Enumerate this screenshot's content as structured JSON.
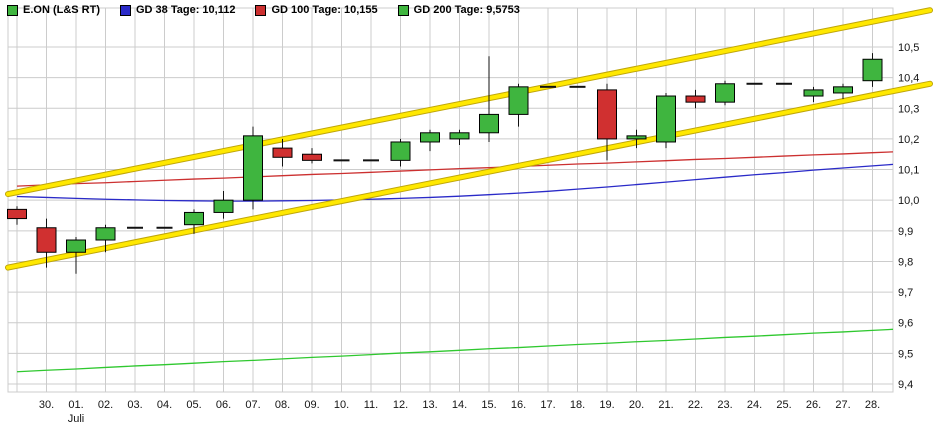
{
  "legend": {
    "items": [
      {
        "label": "E.ON (L&S RT)",
        "color": "#3fb53f"
      },
      {
        "label": "GD 38 Tage: 10,112",
        "color": "#2a2ac8"
      },
      {
        "label": "GD 100 Tage: 10,155",
        "color": "#cc3030"
      },
      {
        "label": "GD 200 Tage: 9,5753",
        "color": "#3fb53f"
      }
    ]
  },
  "chart_data": {
    "type": "candlestick",
    "title": "E.ON (L&S RT)",
    "month_label": "Juli",
    "ylim": [
      9.37,
      10.62
    ],
    "grid": true,
    "y_ticks": [
      9.4,
      9.5,
      9.6,
      9.7,
      9.8,
      9.9,
      10.0,
      10.1,
      10.2,
      10.3,
      10.4,
      10.5
    ],
    "y_tick_labels": [
      "9,4",
      "9,5",
      "9,6",
      "9,7",
      "9,8",
      "9,9",
      "10,0",
      "10,1",
      "10,2",
      "10,3",
      "10,4",
      "10,5"
    ],
    "x_labels": [
      "",
      "30.",
      "01.",
      "02.",
      "03.",
      "04.",
      "05.",
      "06.",
      "07.",
      "08.",
      "09.",
      "10.",
      "11.",
      "12.",
      "13.",
      "14.",
      "15.",
      "16.",
      "17.",
      "18.",
      "19.",
      "20.",
      "21.",
      "22.",
      "23.",
      "24.",
      "25.",
      "26.",
      "27.",
      "28."
    ],
    "candles": [
      {
        "o": 9.97,
        "h": 9.98,
        "l": 9.92,
        "c": 9.94
      },
      {
        "o": 9.91,
        "h": 9.94,
        "l": 9.78,
        "c": 9.83
      },
      {
        "o": 9.83,
        "h": 9.88,
        "l": 9.76,
        "c": 9.87
      },
      {
        "o": 9.87,
        "h": 9.92,
        "l": 9.83,
        "c": 9.91
      },
      {
        "o": 9.91,
        "h": 9.91,
        "l": 9.91,
        "c": 9.91
      },
      {
        "o": 9.91,
        "h": 9.91,
        "l": 9.91,
        "c": 9.91
      },
      {
        "o": 9.92,
        "h": 9.97,
        "l": 9.89,
        "c": 9.96
      },
      {
        "o": 9.96,
        "h": 10.03,
        "l": 9.94,
        "c": 10.0
      },
      {
        "o": 10.0,
        "h": 10.24,
        "l": 9.97,
        "c": 10.21
      },
      {
        "o": 10.17,
        "h": 10.2,
        "l": 10.11,
        "c": 10.14
      },
      {
        "o": 10.15,
        "h": 10.17,
        "l": 10.12,
        "c": 10.13
      },
      {
        "o": 10.13,
        "h": 10.13,
        "l": 10.13,
        "c": 10.13
      },
      {
        "o": 10.13,
        "h": 10.13,
        "l": 10.13,
        "c": 10.13
      },
      {
        "o": 10.13,
        "h": 10.2,
        "l": 10.11,
        "c": 10.19
      },
      {
        "o": 10.19,
        "h": 10.23,
        "l": 10.16,
        "c": 10.22
      },
      {
        "o": 10.2,
        "h": 10.23,
        "l": 10.18,
        "c": 10.22
      },
      {
        "o": 10.22,
        "h": 10.47,
        "l": 10.19,
        "c": 10.28
      },
      {
        "o": 10.28,
        "h": 10.38,
        "l": 10.24,
        "c": 10.37
      },
      {
        "o": 10.37,
        "h": 10.37,
        "l": 10.37,
        "c": 10.37
      },
      {
        "o": 10.37,
        "h": 10.37,
        "l": 10.37,
        "c": 10.37
      },
      {
        "o": 10.36,
        "h": 10.38,
        "l": 10.13,
        "c": 10.2
      },
      {
        "o": 10.2,
        "h": 10.23,
        "l": 10.17,
        "c": 10.21
      },
      {
        "o": 10.19,
        "h": 10.35,
        "l": 10.17,
        "c": 10.34
      },
      {
        "o": 10.34,
        "h": 10.36,
        "l": 10.3,
        "c": 10.32
      },
      {
        "o": 10.32,
        "h": 10.39,
        "l": 10.31,
        "c": 10.38
      },
      {
        "o": 10.38,
        "h": 10.38,
        "l": 10.38,
        "c": 10.38
      },
      {
        "o": 10.38,
        "h": 10.38,
        "l": 10.38,
        "c": 10.38
      },
      {
        "o": 10.34,
        "h": 10.37,
        "l": 10.32,
        "c": 10.36
      },
      {
        "o": 10.35,
        "h": 10.38,
        "l": 10.33,
        "c": 10.37
      },
      {
        "o": 10.39,
        "h": 10.48,
        "l": 10.37,
        "c": 10.46
      }
    ],
    "series": [
      {
        "name": "GD 38 Tage",
        "latest_label": "10,112",
        "color": "#2a2ac8",
        "values": [
          10.012,
          10.009,
          10.006,
          10.003,
          10.001,
          9.999,
          9.998,
          9.997,
          9.997,
          9.998,
          9.999,
          10.001,
          10.003,
          10.006,
          10.009,
          10.013,
          10.018,
          10.023,
          10.029,
          10.036,
          10.043,
          10.051,
          10.059,
          10.067,
          10.075,
          10.083,
          10.09,
          10.098,
          10.105,
          10.112
        ]
      },
      {
        "name": "GD 100 Tage",
        "latest_label": "10,155",
        "color": "#cc3030",
        "values": [
          10.046,
          10.05,
          10.054,
          10.057,
          10.061,
          10.065,
          10.069,
          10.072,
          10.076,
          10.08,
          10.084,
          10.087,
          10.091,
          10.095,
          10.099,
          10.103,
          10.106,
          10.11,
          10.114,
          10.118,
          10.121,
          10.125,
          10.129,
          10.133,
          10.136,
          10.14,
          10.144,
          10.148,
          10.151,
          10.155
        ]
      },
      {
        "name": "GD 200 Tage",
        "latest_label": "9,5753",
        "color": "#2fc82f",
        "values": [
          9.44,
          9.445,
          9.449,
          9.454,
          9.459,
          9.463,
          9.468,
          9.473,
          9.477,
          9.482,
          9.487,
          9.491,
          9.496,
          9.501,
          9.505,
          9.51,
          9.515,
          9.519,
          9.524,
          9.529,
          9.533,
          9.538,
          9.542,
          9.547,
          9.552,
          9.556,
          9.561,
          9.566,
          9.57,
          9.575
        ]
      }
    ],
    "channel": {
      "description": "parallel upward trend channel",
      "color": "#ffe800",
      "upper_price_left_to_right": [
        10.02,
        10.62
      ],
      "lower_price_left_to_right": [
        9.78,
        10.38
      ]
    },
    "colors": {
      "up_candle": "#3fb53f",
      "down_candle": "#d03030",
      "candle_border": "#000000",
      "doji_dash": "#111111",
      "grid": "#cccccc",
      "background": "#ffffff"
    }
  }
}
